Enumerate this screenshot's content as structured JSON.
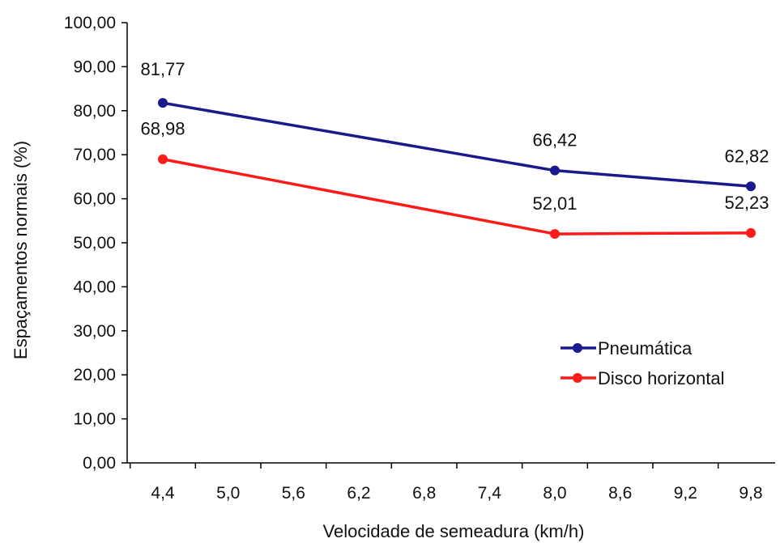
{
  "chart_data": {
    "type": "line",
    "title": "",
    "xlabel": "Velocidade de semeadura (km/h)",
    "ylabel": "Espaçamentos normais (%)",
    "x_ticks": [
      "4,4",
      "5,0",
      "5,6",
      "6,2",
      "6,8",
      "7,4",
      "8,0",
      "8,6",
      "9,2",
      "9,8"
    ],
    "x_tick_values": [
      4.4,
      5.0,
      5.6,
      6.2,
      6.8,
      7.4,
      8.0,
      8.6,
      9.2,
      9.8
    ],
    "y_ticks": [
      "0,00",
      "10,00",
      "20,00",
      "30,00",
      "40,00",
      "50,00",
      "60,00",
      "70,00",
      "80,00",
      "90,00",
      "100,00"
    ],
    "xlim": [
      4.4,
      9.8
    ],
    "ylim": [
      0,
      100
    ],
    "grid": false,
    "legend_position": "right",
    "series": [
      {
        "name": "Pneumática",
        "color": "#1a1a8c",
        "x": [
          4.4,
          8.0,
          9.8
        ],
        "values": [
          81.77,
          66.42,
          62.82
        ],
        "labels": [
          "81,77",
          "66,42",
          "62,82"
        ]
      },
      {
        "name": "Disco horizontal",
        "color": "#ff1a1a",
        "x": [
          4.4,
          8.0,
          9.8
        ],
        "values": [
          68.98,
          52.01,
          52.23
        ],
        "labels": [
          "68,98",
          "52,01",
          "52,23"
        ]
      }
    ]
  }
}
